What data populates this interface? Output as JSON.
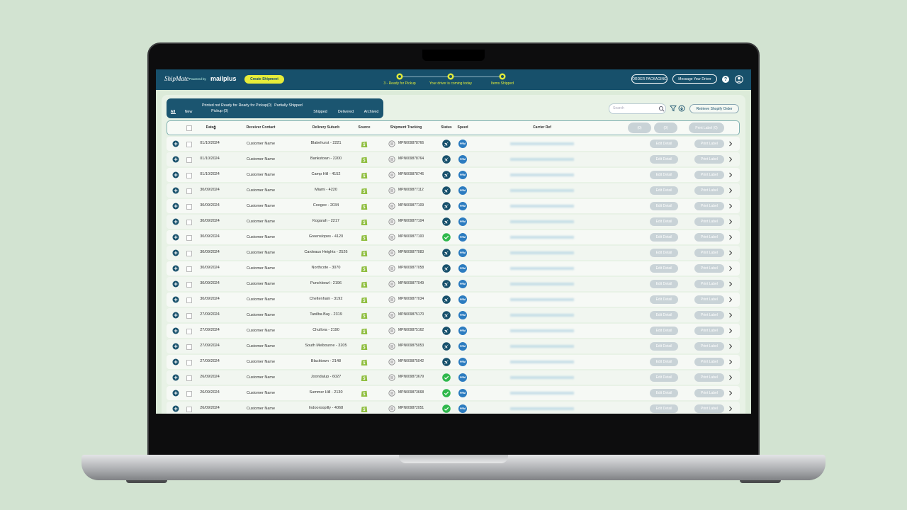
{
  "header": {
    "logo": "ShipMate",
    "powered_by": "Powered by",
    "brand": "mailplus",
    "create_button": "Create Shipment",
    "steps": [
      "3 - Ready for Pickup",
      "Your driver is coming today",
      "Items Shipped"
    ],
    "order_packaging": "ORDER PACKAGING",
    "message_driver": "Message Your Driver",
    "help": "?"
  },
  "tabs": [
    "All",
    "New",
    "Printed not Ready for Pickup (0)",
    "Ready for Pickup(0)",
    "Partially Shipped",
    "Shipped",
    "Delivered",
    "Archived"
  ],
  "search_placeholder": "Search",
  "retrieve_button": "Retrieve Shopify Order",
  "table": {
    "columns": [
      "Date",
      "Receiver Contact",
      "Delivery Suburb",
      "Source",
      "Shipment Tracking",
      "Status",
      "Speed",
      "Carrier Ref"
    ],
    "header_buttons": [
      "(0)",
      "(0)",
      "Print Label (0)"
    ],
    "row_buttons": [
      "Edit Detail",
      "Print Label"
    ],
    "rows": [
      {
        "date": "01/10/2024",
        "receiver": "Customer Name",
        "suburb": "Blakehurst - 2221",
        "tracking": "MPN009878766",
        "status_icon": "plane",
        "speed": "PRM"
      },
      {
        "date": "01/10/2024",
        "receiver": "Customer Name",
        "suburb": "Bankstown - 2200",
        "tracking": "MPN009878764",
        "status_icon": "plane",
        "speed": "PRM"
      },
      {
        "date": "01/10/2024",
        "receiver": "Customer Name",
        "suburb": "Camp Hill - 4152",
        "tracking": "MPN009878746",
        "status_icon": "plane",
        "speed": "PRM"
      },
      {
        "date": "30/09/2024",
        "receiver": "Customer Name",
        "suburb": "Miami - 4220",
        "tracking": "MPN009877112",
        "status_icon": "plane",
        "speed": "PRM"
      },
      {
        "date": "30/09/2024",
        "receiver": "Customer Name",
        "suburb": "Coogee - 2034",
        "tracking": "MPN009877109",
        "status_icon": "plane",
        "speed": "PRM"
      },
      {
        "date": "30/09/2024",
        "receiver": "Customer Name",
        "suburb": "Kogarah - 2217",
        "tracking": "MPN009877104",
        "status_icon": "plane",
        "speed": "PRM"
      },
      {
        "date": "30/09/2024",
        "receiver": "Customer Name",
        "suburb": "Greenslopes - 4120",
        "tracking": "MPN009877100",
        "status_icon": "check",
        "speed": "PRM"
      },
      {
        "date": "30/09/2024",
        "receiver": "Customer Name",
        "suburb": "Cardeaux Heights - 2526",
        "tracking": "MPN009877083",
        "status_icon": "plane",
        "speed": "PRM"
      },
      {
        "date": "30/09/2024",
        "receiver": "Customer Name",
        "suburb": "Northcote - 3070",
        "tracking": "MPN009877058",
        "status_icon": "plane",
        "speed": "PRM"
      },
      {
        "date": "30/09/2024",
        "receiver": "Customer Name",
        "suburb": "Punchbowl - 2196",
        "tracking": "MPN009877049",
        "status_icon": "plane",
        "speed": "PRM"
      },
      {
        "date": "30/09/2024",
        "receiver": "Customer Name",
        "suburb": "Cheltenham - 3192",
        "tracking": "MPN009877034",
        "status_icon": "plane",
        "speed": "PRM"
      },
      {
        "date": "27/09/2024",
        "receiver": "Customer Name",
        "suburb": "Tanilba Bay - 2319",
        "tracking": "MPN009875170",
        "status_icon": "plane",
        "speed": "PRM"
      },
      {
        "date": "27/09/2024",
        "receiver": "Customer Name",
        "suburb": "Chullora - 2190",
        "tracking": "MPN009875162",
        "status_icon": "plane",
        "speed": "PRM"
      },
      {
        "date": "27/09/2024",
        "receiver": "Customer Name",
        "suburb": "South Melbourne - 3205",
        "tracking": "MPN009875053",
        "status_icon": "plane",
        "speed": "PRM"
      },
      {
        "date": "27/09/2024",
        "receiver": "Customer Name",
        "suburb": "Blacktown - 2148",
        "tracking": "MPN009875042",
        "status_icon": "plane",
        "speed": "PRM"
      },
      {
        "date": "26/09/2024",
        "receiver": "Customer Name",
        "suburb": "Joondalup - 6027",
        "tracking": "MPN009873679",
        "status_icon": "check",
        "speed": "PRM"
      },
      {
        "date": "26/09/2024",
        "receiver": "Customer Name",
        "suburb": "Summer Hill - 2130",
        "tracking": "MPN009873668",
        "status_icon": "check",
        "speed": "PRM"
      },
      {
        "date": "26/09/2024",
        "receiver": "Customer Name",
        "suburb": "Indooroopilly - 4068",
        "tracking": "MPN009872051",
        "status_icon": "check",
        "speed": "PRM"
      }
    ]
  }
}
